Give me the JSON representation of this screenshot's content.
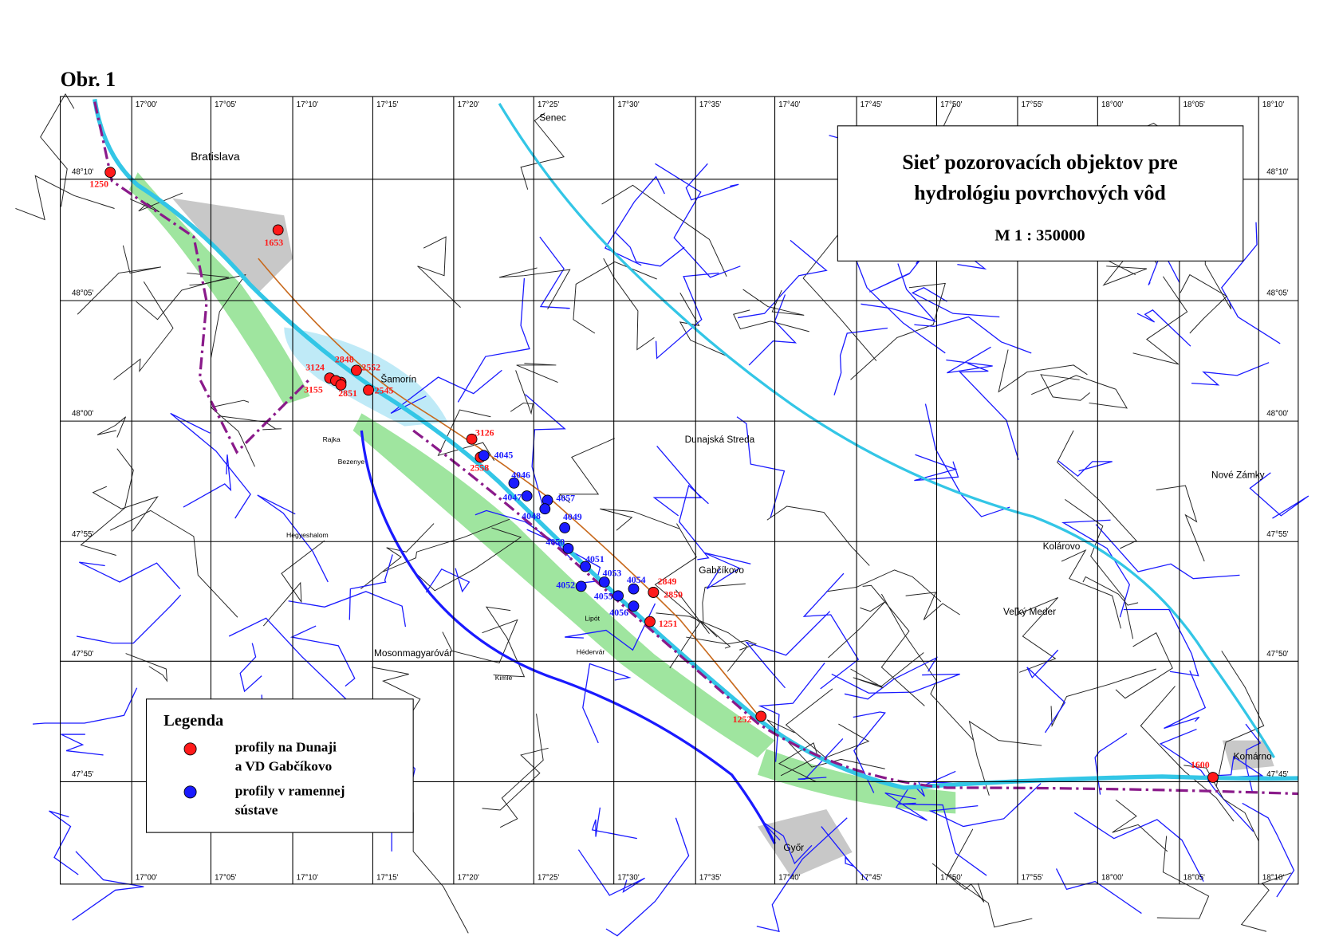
{
  "header": {
    "figure_label": "Obr. 1"
  },
  "title_box": {
    "lines": [
      "Sieť pozorovacích objektov pre",
      "hydrológiu povrchových vôd"
    ],
    "scale": "M 1 : 350000"
  },
  "grid": {
    "longitudes": [
      "17°00'",
      "17°05'",
      "17°10'",
      "17°15'",
      "17°20'",
      "17°25'",
      "17°30'",
      "17°35'",
      "17°40'",
      "17°45'",
      "17°50'",
      "17°55'",
      "18°00'",
      "18°05'",
      "18°10'"
    ],
    "latitudes": [
      "48°10'",
      "48°05'",
      "48°00'",
      "47°55'",
      "47°50'",
      "47°45'"
    ]
  },
  "places": [
    "Bratislava",
    "Senec",
    "Šamorín",
    "Dunajská Streda",
    "Nové Zámky",
    "Kolárovo",
    "Gabčíkovo",
    "Veľký Meder",
    "Komárno",
    "Győr",
    "Mosonmagyaróvár",
    "Rajka",
    "Bezenye",
    "Hegyeshalom",
    "Lipót",
    "Hédervár",
    "Kimle"
  ],
  "stations_danube": [
    "1250",
    "1653",
    "3124",
    "2848",
    "2552",
    "3155",
    "2851",
    "2545",
    "3126",
    "2558",
    "2849",
    "2850",
    "1251",
    "1252",
    "1600"
  ],
  "stations_branches": [
    "4045",
    "4046",
    "4047",
    "4057",
    "4048",
    "4049",
    "4050",
    "4051",
    "4053",
    "4052",
    "4054",
    "4055",
    "4056"
  ],
  "legend": {
    "title": "Legenda",
    "items": [
      {
        "lines": [
          "profily na Dunaji",
          "a VD Gabčíkovo"
        ]
      },
      {
        "lines": [
          "profily v ramennej",
          "sústave"
        ]
      }
    ]
  }
}
